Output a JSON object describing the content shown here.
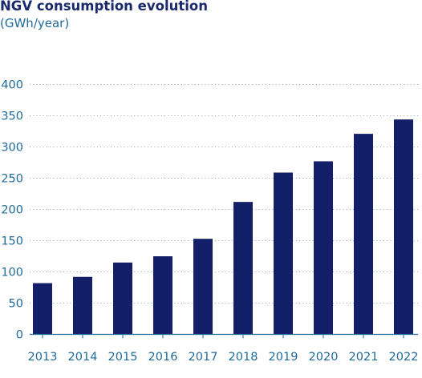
{
  "chart_data": {
    "type": "bar",
    "title": "NGV consumption evolution",
    "subtitle": "(GWh/year)",
    "categories": [
      "2013",
      "2014",
      "2015",
      "2016",
      "2017",
      "2018",
      "2019",
      "2020",
      "2021",
      "2022"
    ],
    "values": [
      82,
      92,
      115,
      125,
      153,
      212,
      259,
      277,
      321,
      344
    ],
    "ylim": [
      0,
      400
    ],
    "yticks": [
      0,
      50,
      100,
      150,
      200,
      250,
      300,
      350,
      400
    ],
    "xlabel": "",
    "ylabel": "",
    "grid": "horizontal dotted",
    "legend": "none",
    "colors": {
      "bar": "#131f68",
      "title": "#1a2a6c",
      "subtitle": "#1f6a9a",
      "tick_label": "#1f6a9a",
      "grid": "#9aa6ad",
      "axis": "#1f6a9a"
    }
  }
}
